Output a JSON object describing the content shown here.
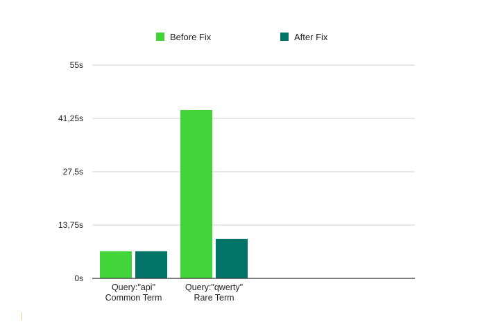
{
  "chart_data": {
    "type": "bar",
    "categories": [
      [
        "Query:\"api\"",
        "Common Term"
      ],
      [
        "Query:\"qwerty\"",
        "Rare Term"
      ]
    ],
    "series": [
      {
        "name": "Before Fix",
        "color": "#43d43a",
        "values": [
          7,
          43.4
        ]
      },
      {
        "name": "After Fix",
        "color": "#007466",
        "values": [
          7,
          10.2
        ]
      }
    ],
    "yticks": [
      {
        "value": 0,
        "label": "0s"
      },
      {
        "value": 13.75,
        "label": "13,75s"
      },
      {
        "value": 27.5,
        "label": "27,5s"
      },
      {
        "value": 41.25,
        "label": "41,25s"
      },
      {
        "value": 55,
        "label": "55s"
      }
    ],
    "ylim": [
      0,
      55
    ],
    "grid": true,
    "legend_position": "top"
  }
}
